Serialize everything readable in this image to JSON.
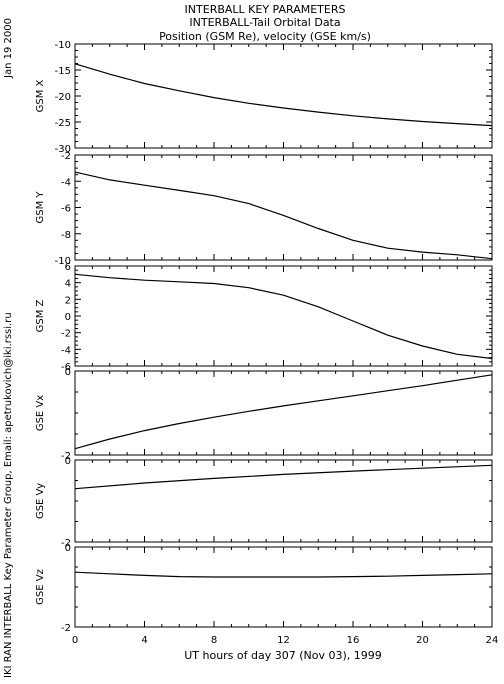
{
  "header": {
    "date_stamp": "Jan 19 2000",
    "side_credit": "IKI RAN INTERBALL Key Parameter Group, Email: apetrukovich@iki.rssi.ru"
  },
  "chart_data": {
    "type": "line",
    "title_lines": [
      "INTERBALL KEY PARAMETERS",
      "INTERBALL-Tail Orbital Data",
      "Position (GSM Re), velocity (GSE km/s)"
    ],
    "xlabel": "UT hours of day 307 (Nov 03), 1999",
    "xlim": [
      0,
      24
    ],
    "xticks": [
      0,
      4,
      8,
      12,
      16,
      20,
      24
    ],
    "panels": [
      {
        "ylabel": "GSM X",
        "ylim": [
          -30,
          -10
        ],
        "yticks": [
          -30,
          -25,
          -20,
          -15,
          -10
        ],
        "x": [
          0,
          2,
          4,
          6,
          8,
          10,
          12,
          14,
          16,
          18,
          20,
          22,
          24
        ],
        "y": [
          -13.8,
          -15.8,
          -17.6,
          -19.0,
          -20.3,
          -21.4,
          -22.3,
          -23.1,
          -23.8,
          -24.4,
          -24.9,
          -25.3,
          -25.7
        ]
      },
      {
        "ylabel": "GSM Y",
        "ylim": [
          -10,
          -2
        ],
        "yticks": [
          -10,
          -8,
          -6,
          -4,
          -2
        ],
        "x": [
          0,
          2,
          4,
          6,
          8,
          10,
          12,
          14,
          16,
          18,
          20,
          22,
          24
        ],
        "y": [
          -3.3,
          -3.9,
          -4.3,
          -4.7,
          -5.1,
          -5.7,
          -6.6,
          -7.6,
          -8.5,
          -9.1,
          -9.4,
          -9.6,
          -9.9
        ]
      },
      {
        "ylabel": "GSM Z",
        "ylim": [
          -6,
          6
        ],
        "yticks": [
          -6,
          -4,
          -2,
          0,
          2,
          4,
          6
        ],
        "x": [
          0,
          2,
          4,
          6,
          8,
          10,
          12,
          14,
          16,
          18,
          20,
          22,
          24
        ],
        "y": [
          5.0,
          4.6,
          4.3,
          4.1,
          3.9,
          3.4,
          2.5,
          1.1,
          -0.6,
          -2.3,
          -3.6,
          -4.6,
          -5.1
        ]
      },
      {
        "ylabel": "GSE Vx",
        "ylim": [
          -2,
          0
        ],
        "yticks": [
          -2,
          0
        ],
        "x": [
          0,
          2,
          4,
          6,
          8,
          10,
          12,
          14,
          16,
          18,
          20,
          22,
          24
        ],
        "y": [
          -1.85,
          -1.62,
          -1.42,
          -1.25,
          -1.1,
          -0.96,
          -0.83,
          -0.71,
          -0.59,
          -0.47,
          -0.35,
          -0.22,
          -0.09
        ]
      },
      {
        "ylabel": "GSE Vy",
        "ylim": [
          -2,
          0
        ],
        "yticks": [
          -2,
          0
        ],
        "x": [
          0,
          4,
          8,
          12,
          16,
          20,
          24
        ],
        "y": [
          -0.7,
          -0.56,
          -0.45,
          -0.35,
          -0.27,
          -0.2,
          -0.13
        ]
      },
      {
        "ylabel": "GSE Vz",
        "ylim": [
          -2,
          0
        ],
        "yticks": [
          -2,
          0
        ],
        "x": [
          0,
          2,
          4,
          6,
          8,
          10,
          12,
          14,
          16,
          18,
          20,
          22,
          24
        ],
        "y": [
          -0.63,
          -0.67,
          -0.71,
          -0.74,
          -0.75,
          -0.75,
          -0.75,
          -0.75,
          -0.74,
          -0.73,
          -0.71,
          -0.69,
          -0.67
        ]
      }
    ]
  }
}
